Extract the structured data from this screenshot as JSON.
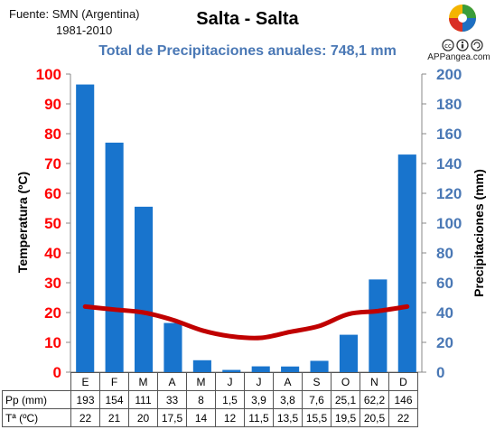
{
  "source": {
    "line1": "Fuente: SMN (Argentina)",
    "line2": "1981-2010"
  },
  "logo": {
    "text": "APPangea.com",
    "icon": "puzzle-globe-icon",
    "license": "cc-by-sa-icon"
  },
  "chart_data": {
    "type": "bar",
    "title": "Salta - Salta",
    "subtitle": "Total de Precipitaciones anuales: 748,1 mm",
    "categories": [
      "E",
      "F",
      "M",
      "A",
      "M",
      "J",
      "J",
      "A",
      "S",
      "O",
      "N",
      "D"
    ],
    "series": [
      {
        "name": "Pp (mm)",
        "type": "bar",
        "axis": "right",
        "color": "#1874cd",
        "values": [
          193,
          154,
          111,
          33,
          8,
          1.5,
          3.9,
          3.8,
          7.6,
          25.1,
          62.2,
          146
        ],
        "labels": [
          "193",
          "154",
          "111",
          "33",
          "8",
          "1,5",
          "3,9",
          "3,8",
          "7,6",
          "25,1",
          "62,2",
          "146"
        ]
      },
      {
        "name": "Tª (ºC)",
        "type": "line",
        "axis": "left",
        "color": "#c00000",
        "values": [
          22,
          21,
          20,
          17.5,
          14,
          12,
          11.5,
          13.5,
          15.5,
          19.5,
          20.5,
          22
        ],
        "labels": [
          "22",
          "21",
          "20",
          "17,5",
          "14",
          "12",
          "11,5",
          "13,5",
          "15,5",
          "19,5",
          "20,5",
          "22"
        ]
      }
    ],
    "y_left": {
      "label": "Temperatura (ºC)",
      "range": [
        0,
        100
      ],
      "ticks": [
        "0",
        "10",
        "20",
        "30",
        "40",
        "50",
        "60",
        "70",
        "80",
        "90",
        "100"
      ],
      "color": "#ff0000"
    },
    "y_right": {
      "label": "Precipitaciones (mm)",
      "range": [
        0,
        200
      ],
      "ticks": [
        "0",
        "20",
        "40",
        "60",
        "80",
        "100",
        "120",
        "140",
        "160",
        "180",
        "200"
      ],
      "color": "#4a78b5"
    },
    "grid": false
  }
}
